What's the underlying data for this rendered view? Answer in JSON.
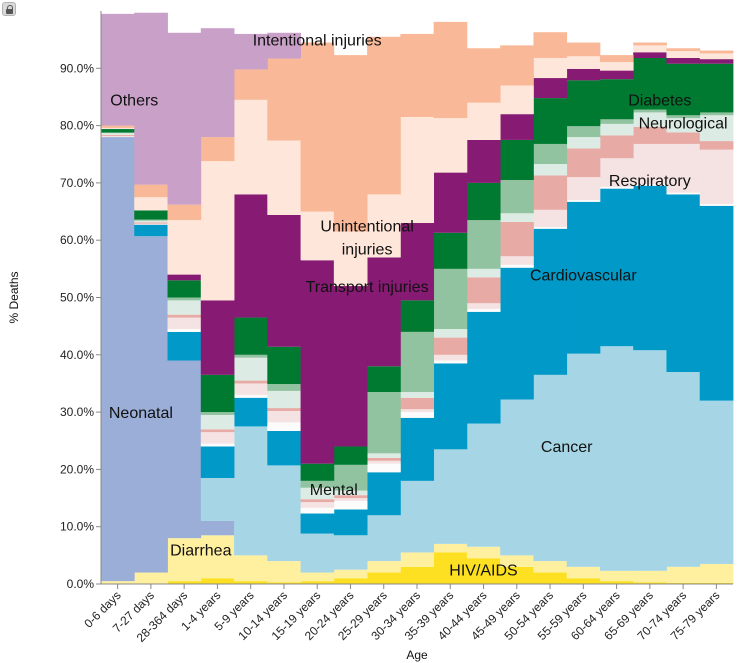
{
  "lock_icon": "lock-icon",
  "chart_data": {
    "type": "area",
    "stacked": true,
    "xlabel": "Age",
    "ylabel": "% Deaths",
    "ylim": [
      0,
      100
    ],
    "yticks": [
      "0.0%",
      "10.0%",
      "20.0%",
      "30.0%",
      "40.0%",
      "50.0%",
      "60.0%",
      "70.0%",
      "80.0%",
      "90.0%"
    ],
    "grid": false,
    "categories": [
      "0-6 days",
      "7-27 days",
      "28-364 days",
      "1-4 years",
      "5-9 years",
      "10-14 years",
      "15-19 years",
      "20-24 years",
      "25-29 years",
      "30-34 years",
      "35-39 years",
      "40-44 years",
      "45-49 years",
      "50-54 years",
      "55-59 years",
      "60-64 years",
      "65-69 years",
      "70-74 years",
      "75-79 years"
    ],
    "series": [
      {
        "key": "hiv",
        "color": "#fde021",
        "values": [
          0,
          0,
          0.5,
          1,
          0.5,
          0.3,
          0.5,
          1,
          2,
          3,
          5.5,
          4.5,
          3,
          2,
          1,
          0.5,
          0.3,
          0.2,
          0.2
        ]
      },
      {
        "key": "diarrhea",
        "color": "#fff0a0",
        "values": [
          0.5,
          2,
          7.5,
          7.5,
          4.5,
          3.7,
          1.5,
          1.5,
          2,
          2.5,
          1.5,
          2,
          2,
          2,
          2,
          1.8,
          2,
          2.8,
          3.3
        ]
      },
      {
        "key": "neonatal",
        "color": "#9aaed8",
        "values": [
          77.5,
          58.7,
          31,
          2.5,
          0,
          0,
          0,
          0,
          0,
          0,
          0,
          0,
          0,
          0,
          0,
          0,
          0,
          0,
          0
        ]
      },
      {
        "key": "cancer",
        "color": "#a6d6e6",
        "values": [
          0,
          0,
          0,
          7.5,
          22.5,
          16.7,
          6.8,
          6,
          8,
          12.5,
          16.5,
          21.5,
          27.2,
          32.5,
          37.2,
          39.2,
          38.5,
          34,
          28.5
        ]
      },
      {
        "key": "cardiovascular",
        "color": "#0099c8",
        "values": [
          0,
          2,
          5,
          5.5,
          5,
          6,
          3.5,
          4.5,
          7.5,
          11,
          15,
          19.5,
          23,
          25.5,
          26.5,
          27.5,
          28.7,
          31,
          34
        ]
      },
      {
        "key": "mental",
        "color": "#fcfcfc",
        "values": [
          0,
          0,
          0.5,
          0.5,
          0.5,
          1.5,
          1,
          1.5,
          1.5,
          1,
          0.5,
          0.5,
          0.5,
          0.3,
          0.3,
          0.3,
          0.3,
          0.3,
          0.3
        ]
      },
      {
        "key": "respiratory",
        "color": "#f5e3e3",
        "values": [
          0.2,
          0.2,
          2,
          2,
          2,
          2,
          1,
          0.5,
          0.5,
          0.5,
          1,
          1,
          1.5,
          3,
          4,
          5,
          7,
          8.5,
          9.5
        ]
      },
      {
        "key": "chronic_resp",
        "color": "#e8aaa5",
        "values": [
          0.2,
          0.2,
          0.5,
          0.5,
          0.5,
          0.5,
          0.5,
          0.5,
          0.5,
          2,
          3,
          4.5,
          6,
          6,
          5,
          4,
          3,
          2,
          1.5
        ]
      },
      {
        "key": "digestive",
        "color": "#dcece4",
        "values": [
          0.3,
          0.3,
          2.5,
          2.5,
          4,
          3,
          2,
          0.8,
          0.8,
          1,
          1.5,
          1.5,
          1.5,
          2,
          2,
          2,
          2.5,
          2.5,
          4.5
        ]
      },
      {
        "key": "kidney",
        "color": "#92c3a0",
        "values": [
          0.1,
          0.2,
          0.5,
          0.5,
          0.5,
          1.2,
          1.2,
          4.5,
          10.7,
          10.5,
          10.5,
          8.5,
          5.8,
          3.5,
          1.9,
          0.8,
          0.5,
          0.5,
          0.5
        ]
      },
      {
        "key": "diabetes",
        "color": "#007a30",
        "values": [
          0.6,
          1.6,
          3,
          6.5,
          6.5,
          6.5,
          3,
          3.2,
          4.5,
          5.5,
          6.3,
          6.5,
          7,
          8,
          8,
          7,
          9,
          9,
          8.5
        ]
      },
      {
        "key": "transport",
        "color": "#871a73",
        "values": [
          0,
          0,
          1,
          13,
          21.5,
          23,
          35.5,
          28,
          19,
          13.5,
          10.5,
          7.5,
          4.5,
          3.5,
          2,
          1.5,
          1,
          1,
          0.8
        ]
      },
      {
        "key": "unintentional",
        "color": "#ffe6da",
        "values": [
          0.2,
          2.3,
          9.5,
          24.3,
          16.5,
          13,
          8.5,
          9.5,
          11,
          18.5,
          9.5,
          6.5,
          5,
          3.5,
          2.2,
          1.5,
          1.2,
          1.2,
          1
        ]
      },
      {
        "key": "intentional",
        "color": "#f9b897",
        "values": [
          0.4,
          2.2,
          2.7,
          4.2,
          5.3,
          14.3,
          29.5,
          30.8,
          27.5,
          14.5,
          16.8,
          9.5,
          7,
          4.5,
          2.4,
          1.2,
          0.5,
          0.5,
          0.5
        ]
      },
      {
        "key": "others",
        "color": "#c9a0c8",
        "values": [
          19.5,
          30,
          30,
          19,
          6.2,
          4.5,
          0,
          0,
          0,
          0,
          0,
          0,
          0,
          0,
          0,
          0,
          0,
          0,
          0
        ]
      }
    ],
    "labels": [
      {
        "text": "Intentional injuries",
        "x": 6,
        "y": 94
      },
      {
        "text": "Others",
        "x": 0.5,
        "y": 83.5
      },
      {
        "text": "Unintentional",
        "x": 7.5,
        "y": 61.5
      },
      {
        "text": "injuries",
        "x": 7.5,
        "y": 57.5
      },
      {
        "text": "Transport injuries",
        "x": 7.5,
        "y": 51
      },
      {
        "text": "Neonatal",
        "x": 0.7,
        "y": 29
      },
      {
        "text": "Mental",
        "x": 6.5,
        "y": 15.5
      },
      {
        "text": "Diarrhea",
        "x": 2.5,
        "y": 5
      },
      {
        "text": "HIV/AIDS",
        "x": 11,
        "y": 1.5
      },
      {
        "text": "Cancer",
        "x": 13.5,
        "y": 23
      },
      {
        "text": "Cardiovascular",
        "x": 14,
        "y": 53
      },
      {
        "text": "Respiratory",
        "x": 16,
        "y": 69.5
      },
      {
        "text": "Neurological",
        "x": 17,
        "y": 79.5
      },
      {
        "text": "Diabetes",
        "x": 16.3,
        "y": 83.5
      }
    ]
  }
}
